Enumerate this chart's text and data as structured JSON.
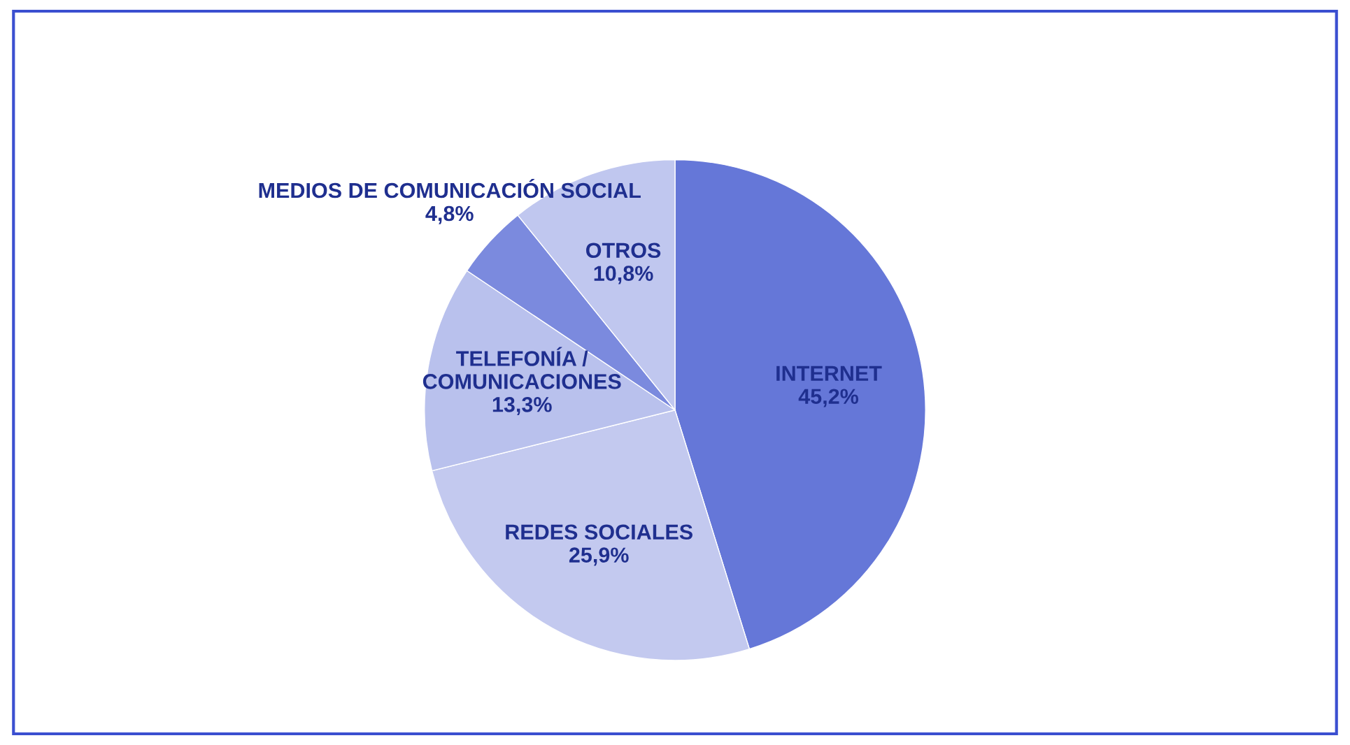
{
  "chart_data": {
    "type": "pie",
    "categories": [
      "INTERNET",
      "REDES SOCIALES",
      "TELEFONÍA /\nCOMUNICACIONES",
      "MEDIOS DE COMUNICACIÓN SOCIAL",
      "OTROS"
    ],
    "values": [
      45.2,
      25.9,
      13.3,
      4.8,
      10.8
    ],
    "colors": [
      "#6577d8",
      "#c3c9ef",
      "#b9c1ed",
      "#7b8ade",
      "#c0c7ef"
    ],
    "value_labels": [
      "45,2%",
      "25,9%",
      "13,3%",
      "4,8%",
      "10,8%"
    ]
  }
}
